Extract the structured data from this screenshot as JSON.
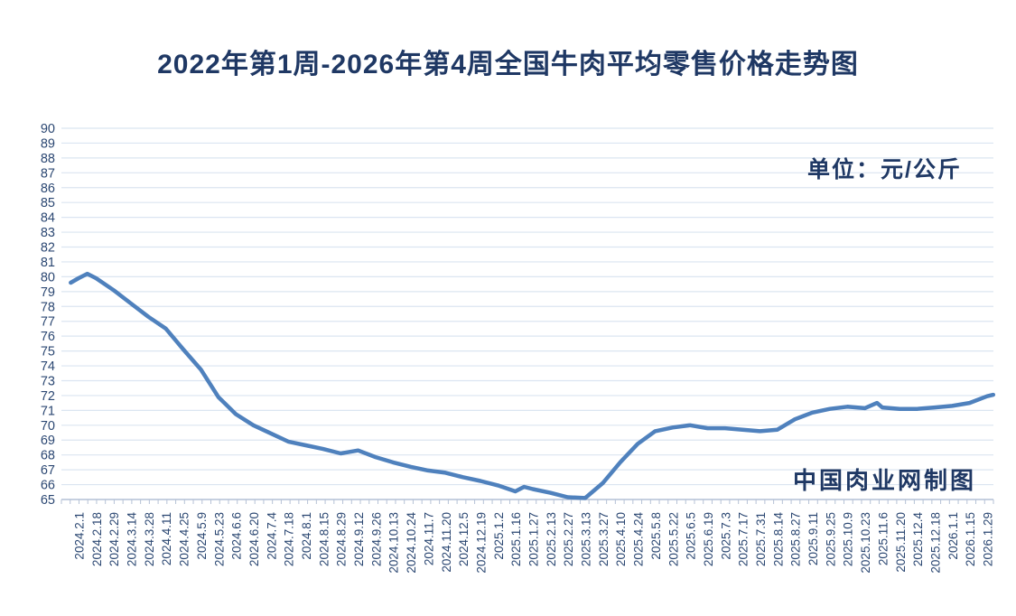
{
  "header": {
    "title": "2022年第1周-2026年第4周全国牛肉平均零售价格走势图"
  },
  "annotations": {
    "unit_label": "单位：元/公斤",
    "credit_label": "中国肉业网制图"
  },
  "colors": {
    "title_text": "#1f3864",
    "tick_label_text": "#2b4772",
    "line": "#4f81bd",
    "gridline": "#dbe5f1",
    "axis": "#b6c2d6"
  },
  "chart_data": {
    "type": "line",
    "title": "2022年第1周-2026年第4周全国牛肉平均零售价格走势图",
    "unit": "元/公斤",
    "credit": "中国肉业网制图",
    "xlabel": "",
    "ylabel": "",
    "ylim": [
      65,
      90
    ],
    "y_tick_step": 1,
    "y_ticks": [
      65,
      66,
      67,
      68,
      69,
      70,
      71,
      72,
      73,
      74,
      75,
      76,
      77,
      78,
      79,
      80,
      81,
      82,
      83,
      84,
      85,
      86,
      87,
      88,
      89,
      90
    ],
    "grid": "horizontal",
    "legend_position": "none",
    "categories": [
      "2024.2.1",
      "2024.2.18",
      "2024.2.29",
      "2024.3.14",
      "2024.3.28",
      "2024.4.11",
      "2024.4.25",
      "2024.5.9",
      "2024.5.23",
      "2024.6.6",
      "2024.6.20",
      "2024.7.4",
      "2024.7.18",
      "2024.8.1",
      "2024.8.15",
      "2024.8.29",
      "2024.9.12",
      "2024.9.26",
      "2024.10.13",
      "2024.10.24",
      "2024.11.7",
      "2024.11.20",
      "2024.12.5",
      "2024.12.19",
      "2025.1.2",
      "2025.1.16",
      "2025.1.27",
      "2025.2.13",
      "2025.2.27",
      "2025.3.13",
      "2025.3.27",
      "2025.4.10",
      "2025.4.24",
      "2025.5.8",
      "2025.5.22",
      "2025.6.5",
      "2025.6.19",
      "2025.7.3",
      "2025.7.17",
      "2025.7.31",
      "2025.8.14",
      "2025.8.27",
      "2025.9.11",
      "2025.9.25",
      "2025.10.9",
      "2025.10.23",
      "2025.11.6",
      "2025.11.20",
      "2025.12.4",
      "2025.12.18",
      "2026.1.1",
      "2026.1.15",
      "2026.1.29"
    ],
    "series": [
      {
        "name": "全国牛肉平均零售价格",
        "values": [
          79.9,
          79.9,
          79.1,
          78.2,
          77.3,
          76.5,
          75.1,
          73.75,
          71.9,
          70.75,
          70.0,
          69.45,
          68.9,
          68.65,
          68.4,
          68.1,
          68.3,
          67.85,
          67.5,
          67.2,
          66.95,
          66.8,
          66.5,
          66.25,
          65.95,
          65.55,
          65.7,
          65.45,
          65.15,
          65.1,
          66.1,
          67.5,
          68.75,
          69.6,
          69.85,
          70.0,
          69.8,
          69.8,
          69.7,
          69.6,
          69.7,
          70.4,
          70.85,
          71.1,
          71.25,
          71.15,
          71.2,
          71.1,
          71.1,
          71.2,
          71.3,
          71.5,
          71.95
        ],
        "shape_detail_points": [
          [
            -0.45,
            79.6
          ],
          [
            0.5,
            80.2
          ],
          [
            25.5,
            65.85
          ],
          [
            45.7,
            71.5
          ],
          [
            52.35,
            72.05
          ]
        ]
      }
    ]
  }
}
